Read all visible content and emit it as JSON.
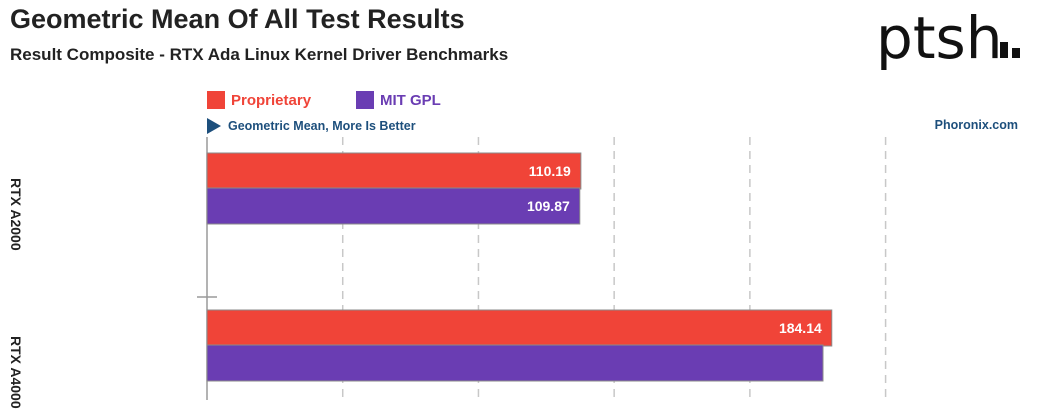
{
  "header": {
    "title": "Geometric Mean Of All Test Results",
    "subtitle": "Result Composite - RTX Ada Linux Kernel Driver Benchmarks",
    "logo_text": "ptsh",
    "direction_note": "Geometric Mean, More Is Better",
    "source": "Phoronix.com"
  },
  "colors": {
    "proprietary": "#f04438",
    "mit_gpl": "#6a3db3",
    "grid": "#c8c8c8",
    "note": "#1d4f7c"
  },
  "chart_data": {
    "type": "bar",
    "orientation": "horizontal",
    "title": "Geometric Mean Of All Test Results",
    "subtitle": "Result Composite - RTX Ada Linux Kernel Driver Benchmarks",
    "categories": [
      "RTX A2000",
      "RTX A4000"
    ],
    "series": [
      {
        "name": "Proprietary",
        "values": [
          110.19,
          184.14
        ]
      },
      {
        "name": "MIT GPL",
        "values": [
          109.87,
          null
        ]
      }
    ],
    "value_labels": [
      [
        "110.19",
        "109.87"
      ],
      [
        "184.14",
        ""
      ]
    ],
    "xlim": [
      0,
      200
    ],
    "grid": true,
    "legend": "top-left"
  }
}
